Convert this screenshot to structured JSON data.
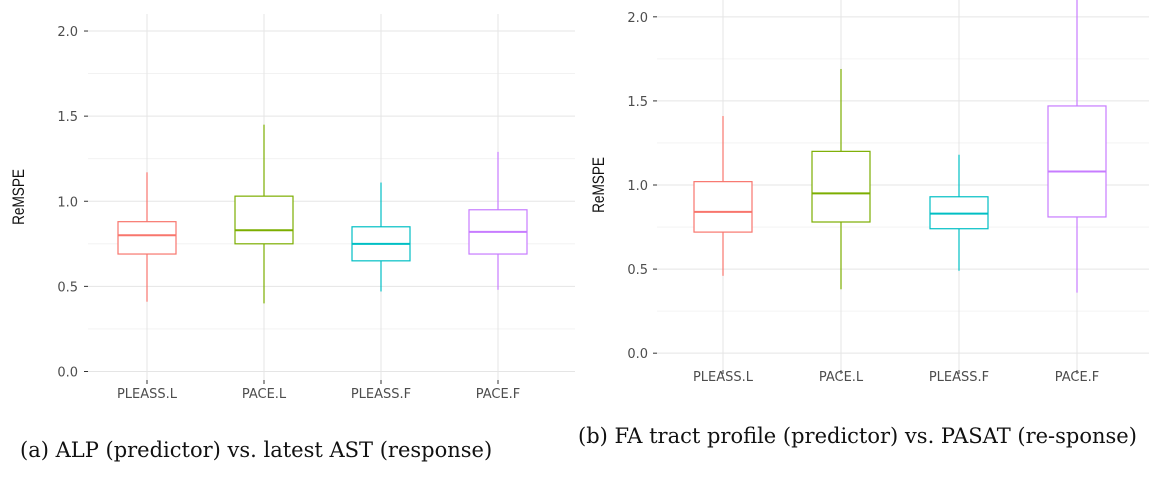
{
  "chart_data": [
    {
      "type": "box",
      "panel": "a",
      "ylabel": "ReMSPE",
      "ylim": [
        -0.05,
        2.1
      ],
      "yticks": [
        "0.0",
        "0.5",
        "1.0",
        "1.5",
        "2.0"
      ],
      "categories": [
        "PLEASS.L",
        "PACE.L",
        "PLEASS.F",
        "PACE.F"
      ],
      "boxes": [
        {
          "name": "PLEASS.L",
          "min": 0.41,
          "q1": 0.69,
          "median": 0.8,
          "q3": 0.88,
          "max": 1.17,
          "color": "#F8766D"
        },
        {
          "name": "PACE.L",
          "min": 0.4,
          "q1": 0.75,
          "median": 0.83,
          "q3": 1.03,
          "max": 1.45,
          "color": "#7CAE00"
        },
        {
          "name": "PLEASS.F",
          "min": 0.47,
          "q1": 0.65,
          "median": 0.75,
          "q3": 0.85,
          "max": 1.11,
          "color": "#00BFC4"
        },
        {
          "name": "PACE.F",
          "min": 0.48,
          "q1": 0.69,
          "median": 0.82,
          "q3": 0.95,
          "max": 1.29,
          "color": "#C77CFF"
        }
      ],
      "grid": true
    },
    {
      "type": "box",
      "panel": "b",
      "ylabel": "ReMSPE",
      "ylim": [
        -0.1,
        2.1
      ],
      "yticks": [
        "0.0",
        "0.5",
        "1.0",
        "1.5",
        "2.0"
      ],
      "categories": [
        "PLEASS.L",
        "PACE.L",
        "PLEASS.F",
        "PACE.F"
      ],
      "boxes": [
        {
          "name": "PLEASS.L",
          "min": 0.46,
          "q1": 0.72,
          "median": 0.84,
          "q3": 1.02,
          "max": 1.41,
          "color": "#F8766D"
        },
        {
          "name": "PACE.L",
          "min": 0.38,
          "q1": 0.78,
          "median": 0.95,
          "q3": 1.2,
          "max": 1.69,
          "color": "#7CAE00"
        },
        {
          "name": "PLEASS.F",
          "min": 0.49,
          "q1": 0.74,
          "median": 0.83,
          "q3": 0.93,
          "max": 1.18,
          "color": "#00BFC4"
        },
        {
          "name": "PACE.F",
          "min": 0.36,
          "q1": 0.81,
          "median": 1.08,
          "q3": 1.47,
          "max": 2.1,
          "color": "#C77CFF"
        }
      ],
      "grid": true
    }
  ],
  "captions": {
    "a": "(a) ALP (predictor) vs. latest AST (response)",
    "b": "(b) FA tract profile (predictor) vs. PASAT (re-sponse)"
  }
}
